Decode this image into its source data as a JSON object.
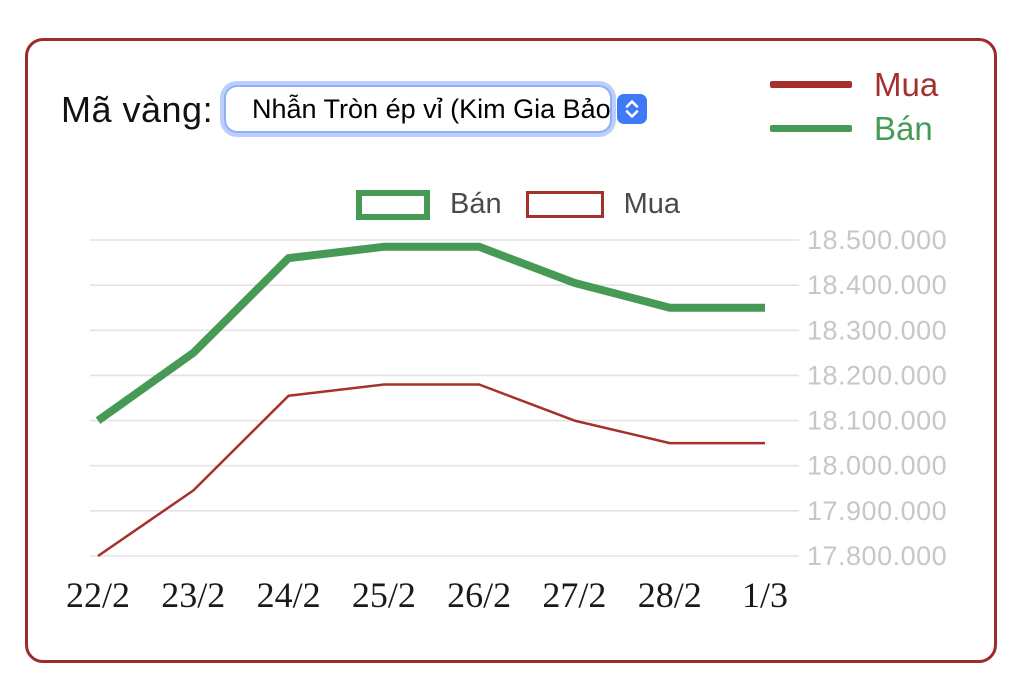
{
  "header": {
    "label": "Mã vàng:",
    "gold_select": {
      "value": "Nhẫn Tròn ép vỉ (Kim Gia Bảo",
      "icon": "up-down-chevrons",
      "accent_color": "#3e79f7",
      "focus_ring_color": "#bccffc"
    }
  },
  "legend_panel": {
    "items": [
      {
        "label": "Mua",
        "color": "#a5312c"
      },
      {
        "label": "Bán",
        "color": "#479a56"
      }
    ]
  },
  "card": {
    "border_color": "#9e2b2b"
  },
  "chart_data": {
    "type": "line",
    "title": "",
    "xlabel": "",
    "ylabel": "",
    "x_labels": [
      "22/2",
      "23/2",
      "24/2",
      "25/2",
      "26/2",
      "27/2",
      "28/2",
      "1/3"
    ],
    "series": [
      {
        "name": "Mua",
        "color": "#a5312c",
        "stroke_width": 2.5,
        "values": [
          17800000,
          17945000,
          18155000,
          18180000,
          18180000,
          18100000,
          18050000,
          18050000
        ]
      },
      {
        "name": "Bán",
        "color": "#479a56",
        "stroke_width": 8,
        "values": [
          18100000,
          18250000,
          18460000,
          18485000,
          18485000,
          18405000,
          18350000,
          18350000
        ]
      }
    ],
    "ylim": [
      17800000,
      18500000
    ],
    "ytick_step": 100000,
    "yticks": [
      {
        "value": 17800000,
        "label": "17.800.000"
      },
      {
        "value": 17900000,
        "label": "17.900.000"
      },
      {
        "value": 18000000,
        "label": "18.000.000"
      },
      {
        "value": 18100000,
        "label": "18.100.000"
      },
      {
        "value": 18200000,
        "label": "18.200.000"
      },
      {
        "value": 18300000,
        "label": "18.300.000"
      },
      {
        "value": 18400000,
        "label": "18.400.000"
      },
      {
        "value": 18500000,
        "label": "18.500.000"
      }
    ],
    "grid": true,
    "gridline_color": "#e3e3e3",
    "ytick_label_color": "#c7c7c7",
    "xtick_label_color": "#1a1a1a",
    "legend_position": "top-center",
    "legend": [
      {
        "label": "Bán",
        "swatch": "thick-green-outline"
      },
      {
        "label": "Mua",
        "swatch": "thin-red-outline"
      }
    ]
  }
}
